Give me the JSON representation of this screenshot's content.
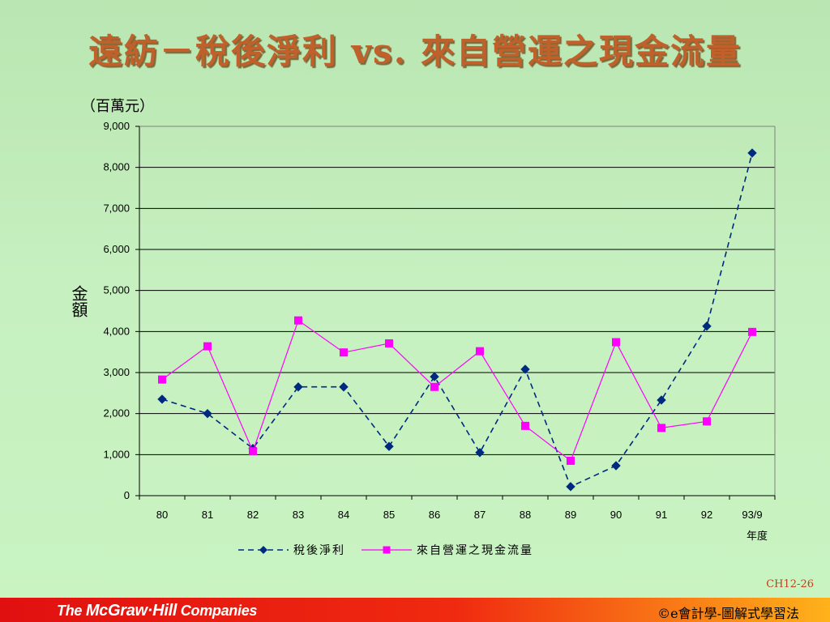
{
  "slide": {
    "title": "遠紡－稅後淨利 vs. 來自營運之現金流量",
    "unit_label": "（百萬元）",
    "y_axis_label": "金額",
    "x_axis_label": "年度",
    "slide_number": "CH12-26"
  },
  "footer": {
    "brand_prefix": "The ",
    "brand_name": "McGraw·Hill",
    "brand_suffix": " Companies",
    "right_text": "©e會計學-圖解式學習法"
  },
  "colors": {
    "series1": "#002a80",
    "series2": "#ff00ff",
    "gridline": "#000000",
    "plot_border": "#808080"
  },
  "chart_data": {
    "type": "line",
    "title": "",
    "xlabel": "年度",
    "ylabel": "金額",
    "ylim": [
      0,
      9000
    ],
    "ytick_step": 1000,
    "yticks": [
      "0",
      "1,000",
      "2,000",
      "3,000",
      "4,000",
      "5,000",
      "6,000",
      "7,000",
      "8,000",
      "9,000"
    ],
    "categories": [
      "80",
      "81",
      "82",
      "83",
      "84",
      "85",
      "86",
      "87",
      "88",
      "89",
      "90",
      "91",
      "92",
      "93/9"
    ],
    "grid": true,
    "legend_position": "bottom",
    "series": [
      {
        "name": "稅後淨利",
        "marker": "diamond",
        "line_style": "dashed",
        "values": [
          2350,
          2000,
          1150,
          2650,
          2650,
          1200,
          2900,
          1050,
          3080,
          220,
          730,
          2330,
          4130,
          8350
        ]
      },
      {
        "name": "來自營運之現金流量",
        "marker": "square",
        "line_style": "solid",
        "values": [
          2830,
          3640,
          1080,
          4270,
          3490,
          3710,
          2650,
          3520,
          1700,
          850,
          3740,
          1650,
          1810,
          3990
        ]
      }
    ]
  }
}
